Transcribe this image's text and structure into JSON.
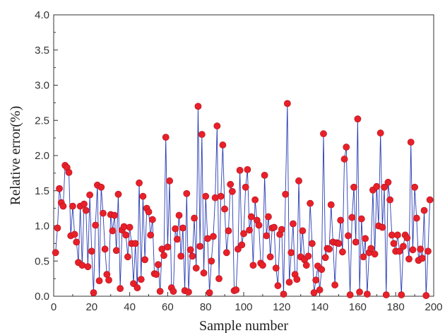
{
  "chart_data": {
    "type": "line",
    "xlabel": "Sample number",
    "ylabel": "Relative error(%)",
    "xlim": [
      0,
      200
    ],
    "ylim": [
      0,
      4.0
    ],
    "x_ticks": [
      "0",
      "20",
      "40",
      "60",
      "80",
      "100",
      "120",
      "140",
      "160",
      "180",
      "200"
    ],
    "y_ticks": [
      "0.0",
      "0.5",
      "1.0",
      "1.5",
      "2.0",
      "2.5",
      "3.0",
      "3.5",
      "4.0"
    ],
    "grid": false,
    "legend": "none",
    "line_color": "#2a3db4",
    "marker_color": "#e8202a",
    "series": [
      {
        "values": [
          0.62,
          0.97,
          1.53,
          1.33,
          1.28,
          1.86,
          1.83,
          1.76,
          0.86,
          1.28,
          0.88,
          0.77,
          0.48,
          1.28,
          0.44,
          1.31,
          1.22,
          0.42,
          1.44,
          0.64,
          0.05,
          1.01,
          1.58,
          0.22,
          1.55,
          1.18,
          0.67,
          0.31,
          0.23,
          1.16,
          0.93,
          1.15,
          0.65,
          1.45,
          0.11,
          0.94,
          0.99,
          0.87,
          0.56,
          0.98,
          0.75,
          0.18,
          0.75,
          0.12,
          1.61,
          0.24,
          1.42,
          0.52,
          1.25,
          1.2,
          0.87,
          1.09,
          0.32,
          0.31,
          0.45,
          0.07,
          0.67,
          0.58,
          2.26,
          0.7,
          1.64,
          0.12,
          0.07,
          0.96,
          0.81,
          1.15,
          0.57,
          0.97,
          0.08,
          1.46,
          0.06,
          0.66,
          0.57,
          1.11,
          0.4,
          2.7,
          0.71,
          2.3,
          0.33,
          1.42,
          0.82,
          0.05,
          0.5,
          0.85,
          1.4,
          2.42,
          0.25,
          1.42,
          2.15,
          1.24,
          0.62,
          0.93,
          1.59,
          1.49,
          0.08,
          0.09,
          0.67,
          1.79,
          0.73,
          0.89,
          1.55,
          1.8,
          0.94,
          1.13,
          0.44,
          1.37,
          1.08,
          1.01,
          0.47,
          0.44,
          1.72,
          0.86,
          1.13,
          0.56,
          0.97,
          0.98,
          0.4,
          0.15,
          0.88,
          0.95,
          0.03,
          1.45,
          2.74,
          0.2,
          0.62,
          1.03,
          0.31,
          0.24,
          1.64,
          0.56,
          0.93,
          0.52,
          0.44,
          0.57,
          1.32,
          0.75,
          0.05,
          0.23,
          0.43,
          0.09,
          0.38,
          2.31,
          0.55,
          0.68,
          0.67,
          1.3,
          0.77,
          0.16,
          0.76,
          0.75,
          1.08,
          0.63,
          1.95,
          2.12,
          0.86,
          0.02,
          1.12,
          1.55,
          0.77,
          2.52,
          0.06,
          1.1,
          0.56,
          0.82,
          0.03,
          0.62,
          0.68,
          1.51,
          0.6,
          1.56,
          1.0,
          2.32,
          0.98,
          1.55,
          0.02,
          1.62,
          1.37,
          0.87,
          0.75,
          0.64,
          0.87,
          0.64,
          0.02,
          0.71,
          0.87,
          0.83,
          0.53,
          2.19,
          0.66,
          1.55,
          1.11,
          0.51,
          0.67,
          0.54,
          1.22,
          0.01,
          0.64,
          1.37
        ]
      }
    ]
  }
}
